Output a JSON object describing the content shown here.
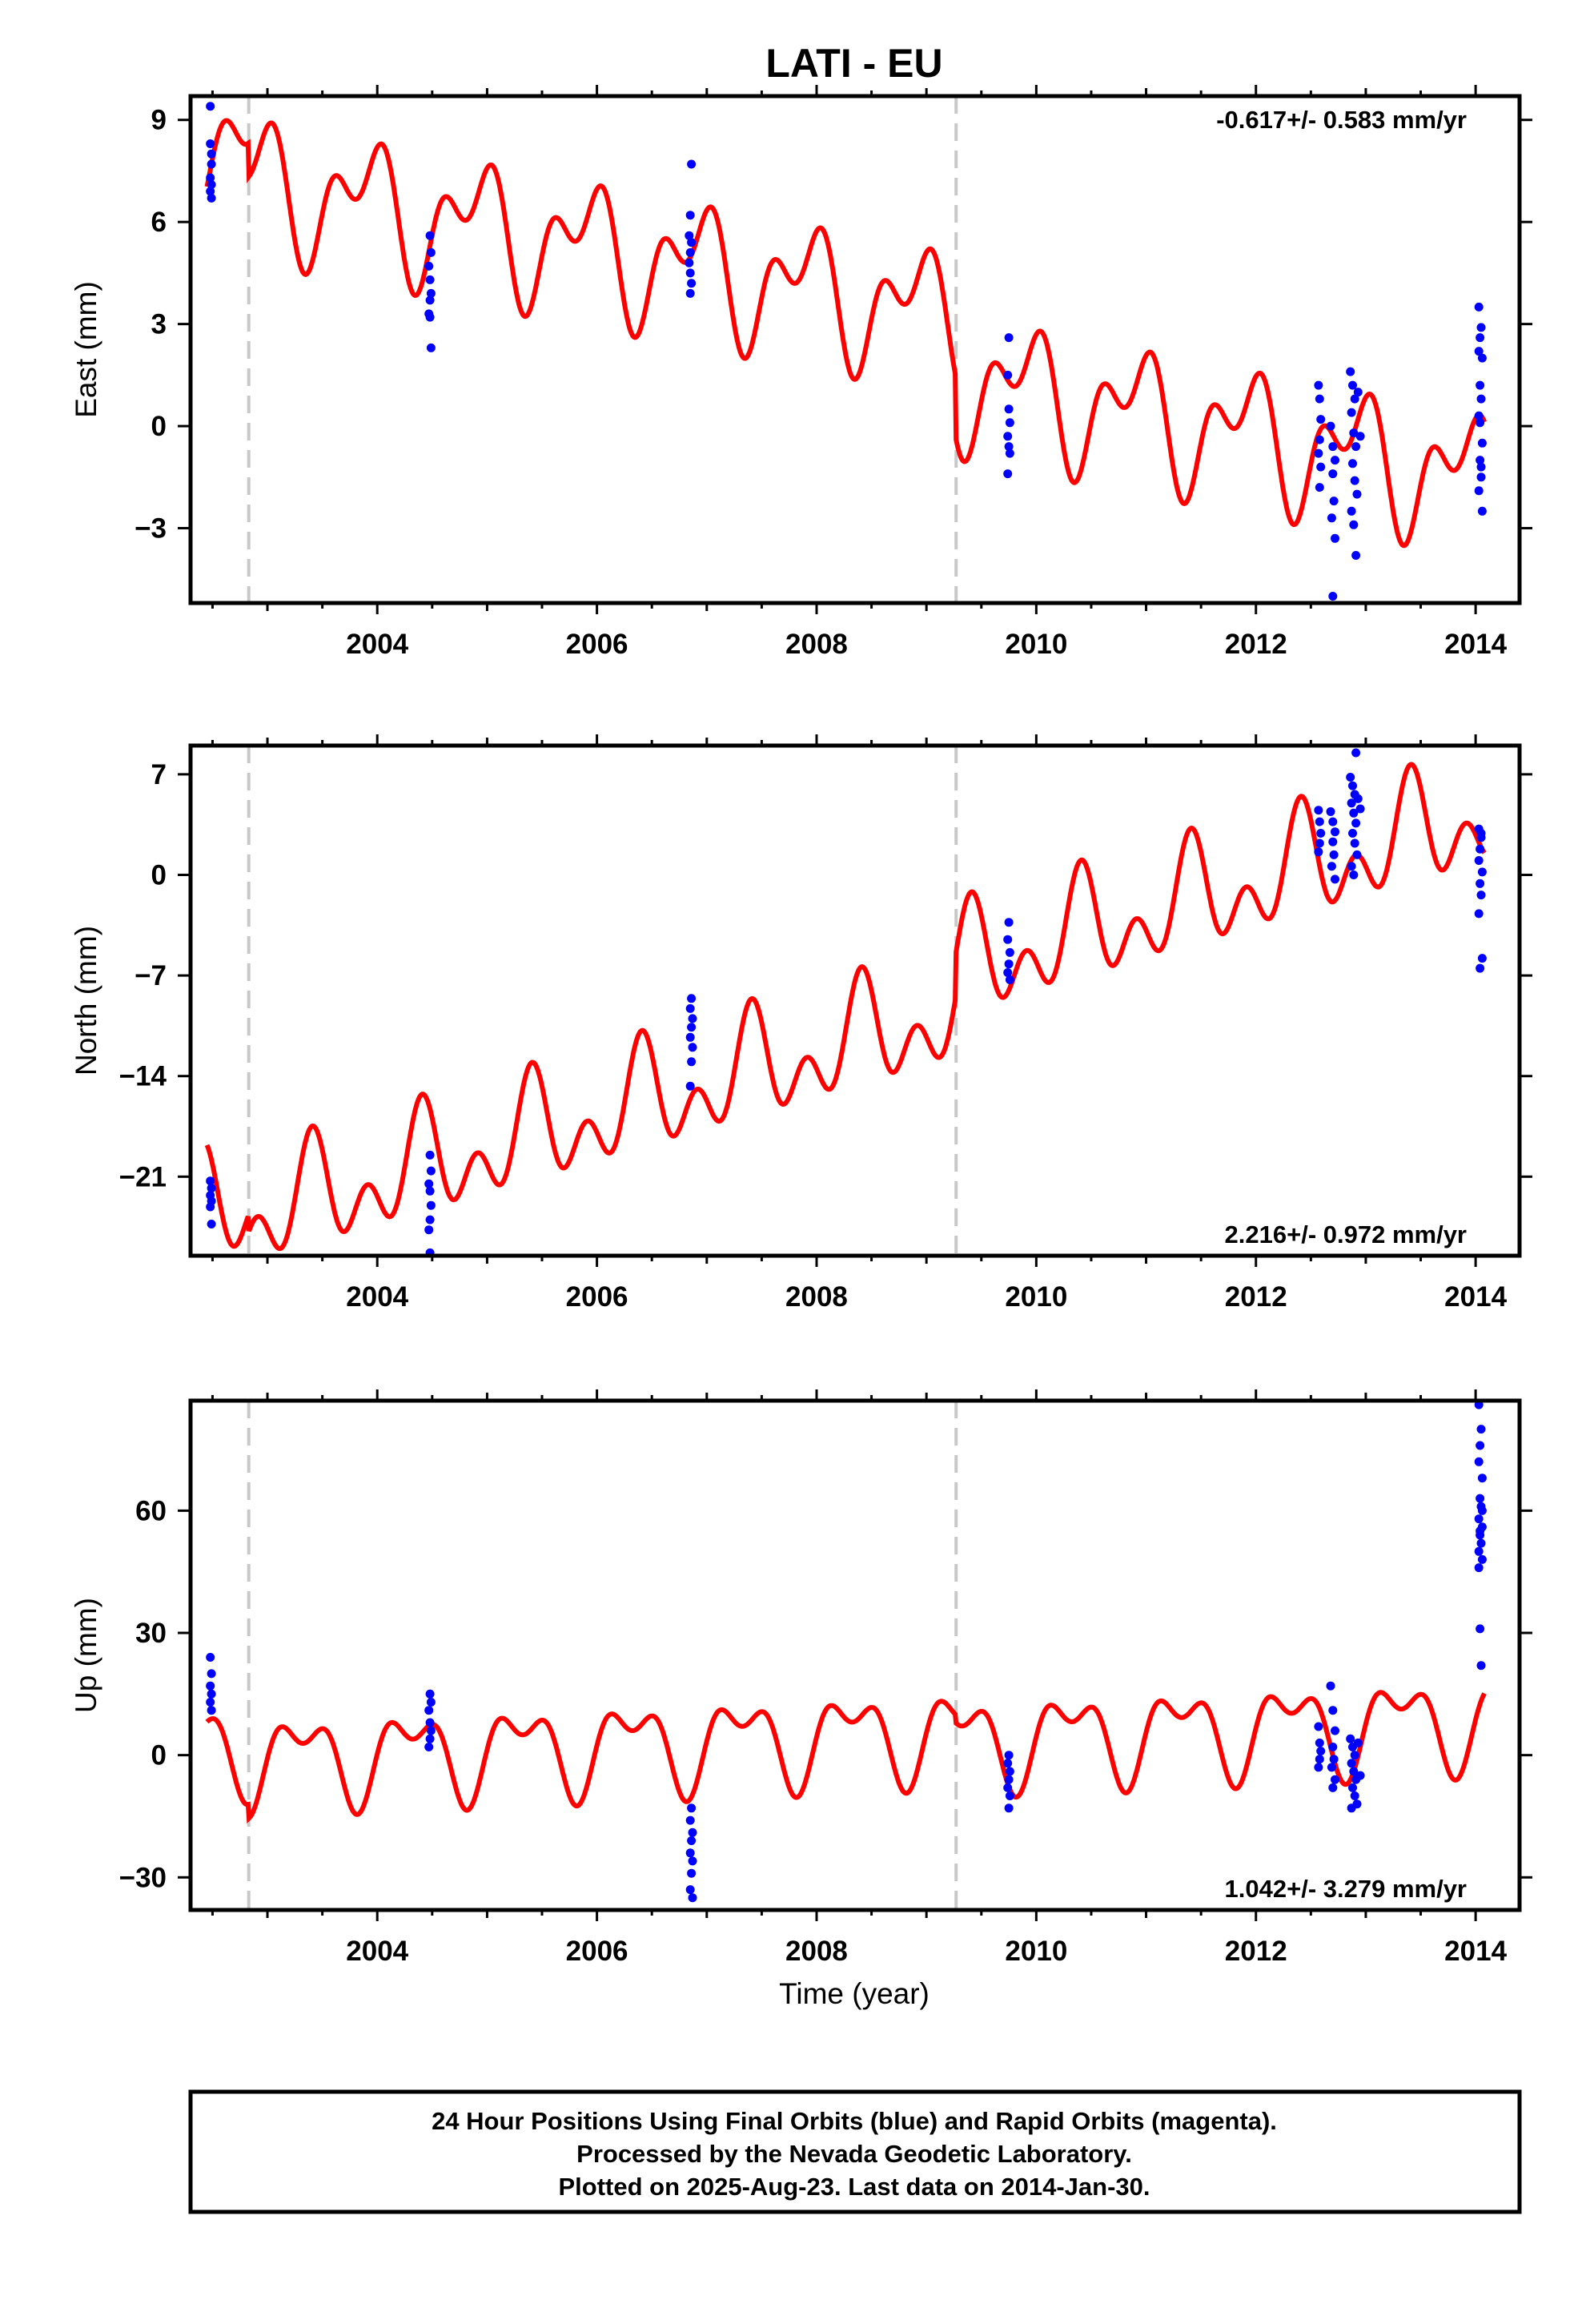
{
  "title": "LATI - EU",
  "xlabel": "Time (year)",
  "x_tick_labels": [
    "2004",
    "2006",
    "2008",
    "2010",
    "2012",
    "2014"
  ],
  "footer": {
    "line1": "24 Hour Positions Using Final Orbits (blue) and Rapid Orbits (magenta).",
    "line2": "Processed by the Nevada Geodetic Laboratory.",
    "line3": "Plotted on 2025-Aug-23. Last data on 2014-Jan-30."
  },
  "colors": {
    "data": "#0000ff",
    "model": "#ff0000",
    "steps": "#c8c8c8",
    "frame": "#000000"
  },
  "chart_data": [
    {
      "type": "scatter",
      "name": "east",
      "ylabel": "East (mm)",
      "rate_label": "-0.617+/- 0.583 mm/yr",
      "xlim": [
        2002.3,
        2014.4
      ],
      "ylim": [
        -5.2,
        9.7
      ],
      "yticks": [
        9,
        6,
        3,
        0,
        -3
      ],
      "ytick_labels": [
        "9",
        "6",
        "3",
        "0",
        "−3"
      ],
      "xticks": [
        2004,
        2006,
        2008,
        2010,
        2012,
        2014
      ],
      "steps": [
        2002.83,
        2009.27
      ],
      "model": {
        "offset": 8.4,
        "rate": -0.617,
        "annual_amp": 1.4,
        "annual_phase": 2.2,
        "semi_amp": 1.1,
        "semi_phase": 0.6,
        "jumps": [
          [
            2002.83,
            -1.0
          ],
          [
            2009.27,
            -1.8
          ]
        ],
        "year0": 2002.45,
        "year1": 2014.08
      },
      "points": [
        [
          2002.48,
          9.4
        ],
        [
          2002.48,
          8.3
        ],
        [
          2002.49,
          8.0
        ],
        [
          2002.49,
          7.7
        ],
        [
          2002.48,
          7.3
        ],
        [
          2002.49,
          7.1
        ],
        [
          2002.48,
          6.9
        ],
        [
          2002.49,
          6.7
        ],
        [
          2004.48,
          5.6
        ],
        [
          2004.49,
          5.1
        ],
        [
          2004.47,
          4.7
        ],
        [
          2004.48,
          4.3
        ],
        [
          2004.49,
          3.9
        ],
        [
          2004.48,
          3.7
        ],
        [
          2004.47,
          3.3
        ],
        [
          2004.48,
          3.2
        ],
        [
          2004.49,
          2.3
        ],
        [
          2006.86,
          7.7
        ],
        [
          2006.85,
          6.2
        ],
        [
          2006.84,
          5.6
        ],
        [
          2006.86,
          5.4
        ],
        [
          2006.85,
          5.1
        ],
        [
          2006.84,
          4.8
        ],
        [
          2006.85,
          4.5
        ],
        [
          2006.86,
          4.2
        ],
        [
          2006.85,
          3.9
        ],
        [
          2009.75,
          2.6
        ],
        [
          2009.74,
          1.5
        ],
        [
          2009.75,
          0.5
        ],
        [
          2009.76,
          0.1
        ],
        [
          2009.74,
          -0.3
        ],
        [
          2009.75,
          -0.6
        ],
        [
          2009.76,
          -0.8
        ],
        [
          2009.74,
          -1.4
        ],
        [
          2012.57,
          1.2
        ],
        [
          2012.58,
          0.8
        ],
        [
          2012.59,
          0.2
        ],
        [
          2012.58,
          -0.4
        ],
        [
          2012.57,
          -0.8
        ],
        [
          2012.59,
          -1.2
        ],
        [
          2012.58,
          -1.8
        ],
        [
          2012.68,
          0.0
        ],
        [
          2012.7,
          -0.6
        ],
        [
          2012.72,
          -1.0
        ],
        [
          2012.7,
          -1.4
        ],
        [
          2012.71,
          -2.2
        ],
        [
          2012.69,
          -2.7
        ],
        [
          2012.72,
          -3.3
        ],
        [
          2012.7,
          -5.0
        ],
        [
          2012.86,
          1.6
        ],
        [
          2012.88,
          1.2
        ],
        [
          2012.9,
          0.8
        ],
        [
          2012.87,
          0.4
        ],
        [
          2012.89,
          -0.2
        ],
        [
          2012.91,
          -0.6
        ],
        [
          2012.88,
          -1.1
        ],
        [
          2012.9,
          -1.6
        ],
        [
          2012.92,
          -2.0
        ],
        [
          2012.87,
          -2.5
        ],
        [
          2012.89,
          -2.9
        ],
        [
          2012.91,
          -3.8
        ],
        [
          2012.93,
          1.0
        ],
        [
          2012.95,
          -0.3
        ],
        [
          2014.03,
          3.5
        ],
        [
          2014.05,
          2.9
        ],
        [
          2014.04,
          2.6
        ],
        [
          2014.03,
          2.2
        ],
        [
          2014.06,
          2.0
        ],
        [
          2014.04,
          1.2
        ],
        [
          2014.05,
          0.8
        ],
        [
          2014.03,
          0.3
        ],
        [
          2014.06,
          -0.5
        ],
        [
          2014.04,
          -1.0
        ],
        [
          2014.05,
          -1.5
        ],
        [
          2014.03,
          -1.9
        ],
        [
          2014.06,
          -2.5
        ],
        [
          2014.04,
          0.1
        ],
        [
          2014.05,
          -1.2
        ]
      ]
    },
    {
      "type": "scatter",
      "name": "north",
      "ylabel": "North (mm)",
      "rate_label": "2.216+/- 0.972 mm/yr",
      "xlim": [
        2002.3,
        2014.4
      ],
      "ylim": [
        -26.5,
        9.0
      ],
      "yticks": [
        7,
        0,
        -7,
        -14,
        -21
      ],
      "ytick_labels": [
        "7",
        "0",
        "−7",
        "−14",
        "−21"
      ],
      "xticks": [
        2004,
        2006,
        2008,
        2010,
        2012,
        2014
      ],
      "steps": [
        2002.83,
        2009.27
      ],
      "model": {
        "offset": -23.5,
        "rate": 2.216,
        "annual_amp": 2.6,
        "annual_phase": 5.3,
        "semi_amp": 2.5,
        "semi_phase": 2.7,
        "jumps": [
          [
            2002.83,
            -1.2
          ],
          [
            2009.27,
            3.0
          ]
        ],
        "year0": 2002.45,
        "year1": 2014.08
      },
      "points": [
        [
          2002.48,
          -21.3
        ],
        [
          2002.49,
          -21.8
        ],
        [
          2002.48,
          -22.3
        ],
        [
          2002.49,
          -22.7
        ],
        [
          2002.48,
          -23.1
        ],
        [
          2002.49,
          -24.3
        ],
        [
          2004.48,
          -19.5
        ],
        [
          2004.49,
          -20.6
        ],
        [
          2004.47,
          -21.5
        ],
        [
          2004.48,
          -22.0
        ],
        [
          2004.49,
          -23.0
        ],
        [
          2004.48,
          -24.0
        ],
        [
          2004.47,
          -24.7
        ],
        [
          2004.48,
          -26.3
        ],
        [
          2006.86,
          -8.6
        ],
        [
          2006.85,
          -9.3
        ],
        [
          2006.87,
          -10.0
        ],
        [
          2006.86,
          -10.6
        ],
        [
          2006.85,
          -11.3
        ],
        [
          2006.87,
          -12.0
        ],
        [
          2006.86,
          -13.0
        ],
        [
          2006.85,
          -14.7
        ],
        [
          2009.75,
          -3.3
        ],
        [
          2009.74,
          -4.5
        ],
        [
          2009.76,
          -5.4
        ],
        [
          2009.75,
          -6.2
        ],
        [
          2009.74,
          -6.8
        ],
        [
          2009.76,
          -7.3
        ],
        [
          2012.57,
          4.5
        ],
        [
          2012.58,
          3.7
        ],
        [
          2012.59,
          2.9
        ],
        [
          2012.58,
          2.2
        ],
        [
          2012.57,
          1.6
        ],
        [
          2012.68,
          4.4
        ],
        [
          2012.7,
          3.7
        ],
        [
          2012.72,
          3.0
        ],
        [
          2012.7,
          2.3
        ],
        [
          2012.71,
          1.4
        ],
        [
          2012.69,
          0.6
        ],
        [
          2012.72,
          -0.3
        ],
        [
          2012.86,
          6.8
        ],
        [
          2012.88,
          6.2
        ],
        [
          2012.9,
          5.6
        ],
        [
          2012.87,
          5.0
        ],
        [
          2012.89,
          4.3
        ],
        [
          2012.91,
          3.6
        ],
        [
          2012.88,
          2.9
        ],
        [
          2012.9,
          2.2
        ],
        [
          2012.92,
          1.4
        ],
        [
          2012.87,
          0.6
        ],
        [
          2012.89,
          0.0
        ],
        [
          2012.91,
          8.5
        ],
        [
          2012.93,
          5.3
        ],
        [
          2012.95,
          4.6
        ],
        [
          2014.03,
          3.2
        ],
        [
          2014.05,
          2.6
        ],
        [
          2014.04,
          1.8
        ],
        [
          2014.03,
          1.0
        ],
        [
          2014.06,
          0.2
        ],
        [
          2014.04,
          -0.6
        ],
        [
          2014.05,
          -1.4
        ],
        [
          2014.03,
          -2.7
        ],
        [
          2014.06,
          -5.8
        ],
        [
          2014.04,
          -6.5
        ],
        [
          2014.05,
          2.9
        ]
      ]
    },
    {
      "type": "scatter",
      "name": "up",
      "ylabel": "Up (mm)",
      "rate_label": "1.042+/- 3.279 mm/yr",
      "xlim": [
        2002.3,
        2014.4
      ],
      "ylim": [
        -38,
        87
      ],
      "yticks": [
        60,
        30,
        0,
        -30
      ],
      "ytick_labels": [
        "60",
        "30",
        "0",
        "−30"
      ],
      "xticks": [
        2004,
        2006,
        2008,
        2010,
        2012,
        2014
      ],
      "steps": [
        2002.83,
        2009.27
      ],
      "model": {
        "offset": 2.0,
        "rate": 1.042,
        "annual_amp": 9.0,
        "annual_phase": 5.9,
        "semi_amp": 5.5,
        "semi_phase": 0.7,
        "jumps": [
          [
            2002.83,
            -3.5
          ],
          [
            2009.27,
            -2.0
          ]
        ],
        "year0": 2002.45,
        "year1": 2014.08
      },
      "points": [
        [
          2002.48,
          24
        ],
        [
          2002.49,
          20
        ],
        [
          2002.48,
          17
        ],
        [
          2002.49,
          15
        ],
        [
          2002.48,
          13
        ],
        [
          2002.49,
          11
        ],
        [
          2004.48,
          15
        ],
        [
          2004.49,
          13
        ],
        [
          2004.47,
          11
        ],
        [
          2004.48,
          8
        ],
        [
          2004.49,
          6
        ],
        [
          2004.48,
          4
        ],
        [
          2004.47,
          2
        ],
        [
          2006.86,
          -13
        ],
        [
          2006.85,
          -16
        ],
        [
          2006.87,
          -19
        ],
        [
          2006.86,
          -21
        ],
        [
          2006.85,
          -24
        ],
        [
          2006.87,
          -26
        ],
        [
          2006.86,
          -29
        ],
        [
          2006.85,
          -33
        ],
        [
          2006.87,
          -35
        ],
        [
          2009.75,
          0
        ],
        [
          2009.74,
          -2
        ],
        [
          2009.76,
          -4
        ],
        [
          2009.75,
          -6
        ],
        [
          2009.74,
          -8
        ],
        [
          2009.76,
          -10
        ],
        [
          2009.75,
          -13
        ],
        [
          2012.57,
          7
        ],
        [
          2012.58,
          3
        ],
        [
          2012.59,
          1
        ],
        [
          2012.58,
          -1
        ],
        [
          2012.57,
          -3
        ],
        [
          2012.68,
          17
        ],
        [
          2012.7,
          11
        ],
        [
          2012.72,
          6
        ],
        [
          2012.7,
          2
        ],
        [
          2012.71,
          -1
        ],
        [
          2012.69,
          -3
        ],
        [
          2012.72,
          -6
        ],
        [
          2012.7,
          -8
        ],
        [
          2012.86,
          4
        ],
        [
          2012.88,
          2
        ],
        [
          2012.9,
          0
        ],
        [
          2012.87,
          -2
        ],
        [
          2012.89,
          -4
        ],
        [
          2012.91,
          -6
        ],
        [
          2012.88,
          -8
        ],
        [
          2012.9,
          -10
        ],
        [
          2012.92,
          -12
        ],
        [
          2012.87,
          -13
        ],
        [
          2012.93,
          3
        ],
        [
          2012.95,
          -5
        ],
        [
          2014.03,
          86
        ],
        [
          2014.05,
          80
        ],
        [
          2014.04,
          76
        ],
        [
          2014.03,
          72
        ],
        [
          2014.06,
          68
        ],
        [
          2014.04,
          63
        ],
        [
          2014.05,
          61
        ],
        [
          2014.03,
          58
        ],
        [
          2014.06,
          56
        ],
        [
          2014.04,
          54
        ],
        [
          2014.05,
          52
        ],
        [
          2014.03,
          50
        ],
        [
          2014.06,
          48
        ],
        [
          2014.04,
          31
        ],
        [
          2014.05,
          22
        ],
        [
          2014.03,
          46
        ],
        [
          2014.06,
          60
        ],
        [
          2014.04,
          55
        ]
      ]
    }
  ]
}
